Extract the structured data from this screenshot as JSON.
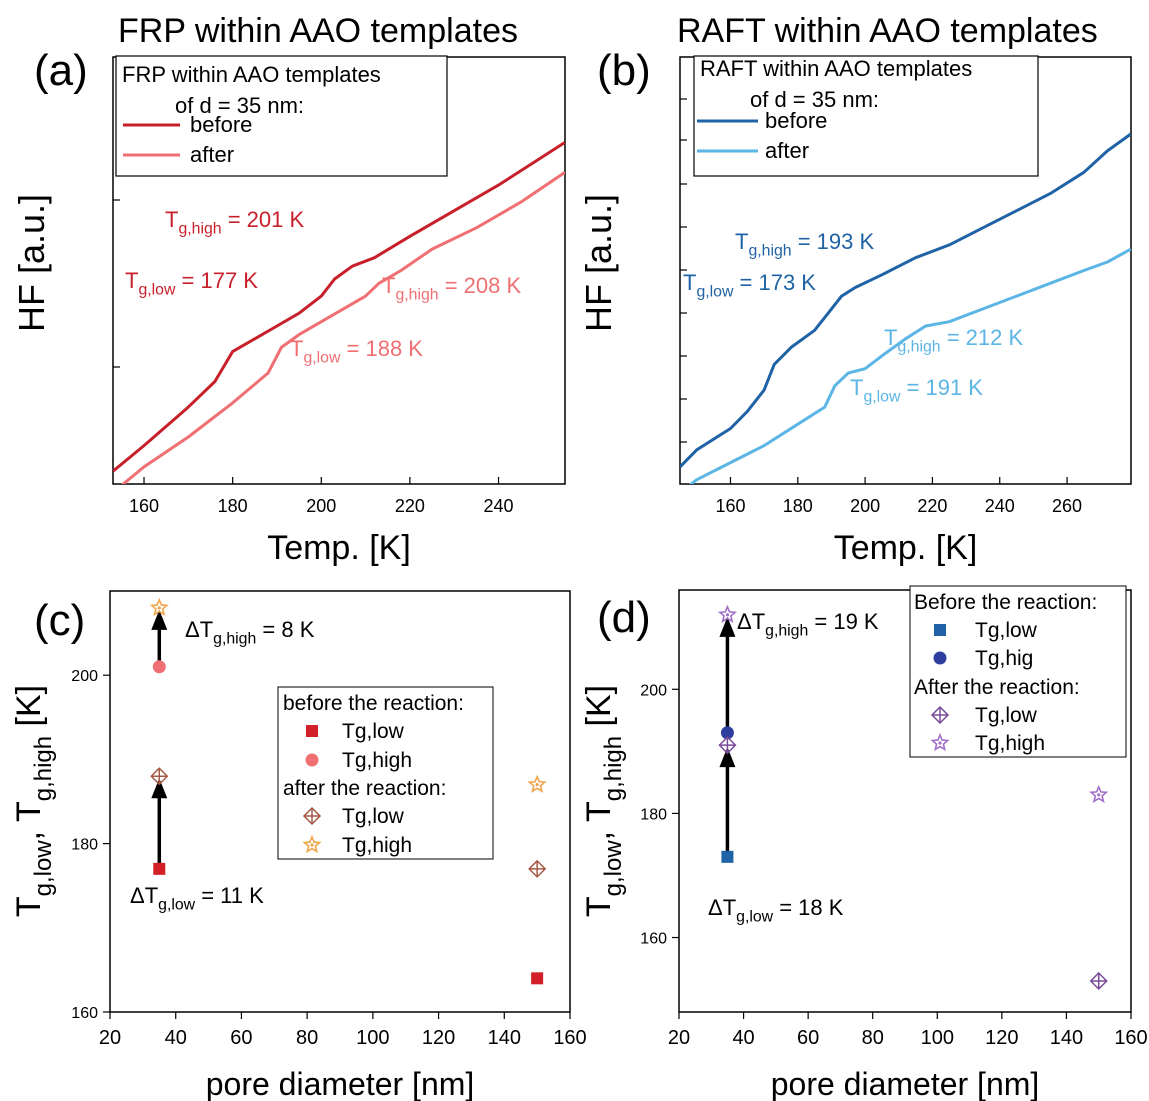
{
  "chart_data": [
    {
      "panel": "a",
      "type": "line",
      "panel_label": "(a)",
      "title": "FRP within AAO templates",
      "xlabel": "Temp. [K]",
      "ylabel": "HF [a.u.]",
      "xlim": [
        153,
        255
      ],
      "ylim": [
        0,
        1
      ],
      "xticks": [
        160,
        180,
        200,
        220,
        240
      ],
      "legend": {
        "position": "top-left",
        "title_lines": [
          "FRP within AAO templates",
          "of d = 35 nm:"
        ],
        "entries": [
          "before",
          "after"
        ]
      },
      "colors": {
        "before": "#c8202b",
        "after": "#ef6f73"
      },
      "series": [
        {
          "name": "before",
          "x": [
            153,
            160,
            170,
            176,
            180,
            185,
            190,
            195,
            200,
            203,
            207,
            212,
            220,
            230,
            240,
            255
          ],
          "y": [
            0.03,
            0.09,
            0.18,
            0.24,
            0.31,
            0.34,
            0.37,
            0.4,
            0.44,
            0.48,
            0.51,
            0.53,
            0.58,
            0.64,
            0.7,
            0.8
          ]
        },
        {
          "name": "after",
          "x": [
            153,
            160,
            170,
            180,
            188,
            191,
            195,
            200,
            205,
            210,
            213,
            218,
            225,
            235,
            245,
            255
          ],
          "y": [
            -0.02,
            0.04,
            0.11,
            0.19,
            0.26,
            0.32,
            0.35,
            0.38,
            0.41,
            0.44,
            0.47,
            0.5,
            0.55,
            0.6,
            0.66,
            0.73
          ]
        }
      ],
      "annotations": [
        {
          "sym": "T",
          "sub": "g,high",
          "text": " = 201 K",
          "color": "#c8202b"
        },
        {
          "sym": "T",
          "sub": "g,low",
          "text": " = 177 K",
          "color": "#c8202b"
        },
        {
          "sym": "T",
          "sub": "g,high",
          "text": " = 208 K",
          "color": "#ef6f73"
        },
        {
          "sym": "T",
          "sub": "g,low",
          "text": " = 188 K",
          "color": "#ef6f73"
        }
      ]
    },
    {
      "panel": "b",
      "type": "line",
      "panel_label": "(b)",
      "title": "RAFT within AAO templates",
      "xlabel": "Temp. [K]",
      "ylabel": "HF [a.u.]",
      "xlim": [
        145,
        279
      ],
      "ylim": [
        0,
        1
      ],
      "xticks": [
        160,
        180,
        200,
        220,
        240,
        260
      ],
      "legend": {
        "position": "top-left",
        "title_lines": [
          "RAFT within AAO templates",
          "of d = 35 nm:"
        ],
        "entries": [
          "before",
          "after"
        ]
      },
      "colors": {
        "before": "#1f63a6",
        "after": "#5bb5e5"
      },
      "series": [
        {
          "name": "before",
          "x": [
            145,
            150,
            160,
            165,
            170,
            173,
            178,
            185,
            190,
            193,
            197,
            205,
            215,
            225,
            235,
            245,
            255,
            265,
            272,
            279
          ],
          "y": [
            0.04,
            0.08,
            0.13,
            0.17,
            0.22,
            0.28,
            0.32,
            0.36,
            0.41,
            0.44,
            0.46,
            0.49,
            0.53,
            0.56,
            0.6,
            0.64,
            0.68,
            0.73,
            0.78,
            0.82
          ]
        },
        {
          "name": "after",
          "x": [
            145,
            150,
            160,
            170,
            180,
            188,
            191,
            195,
            200,
            205,
            212,
            218,
            225,
            235,
            245,
            255,
            265,
            272,
            279
          ],
          "y": [
            -0.02,
            0.01,
            0.05,
            0.09,
            0.14,
            0.18,
            0.23,
            0.26,
            0.27,
            0.3,
            0.34,
            0.37,
            0.38,
            0.41,
            0.44,
            0.47,
            0.5,
            0.52,
            0.55
          ]
        }
      ],
      "annotations": [
        {
          "sym": "T",
          "sub": "g,high",
          "text": " = 193 K",
          "color": "#1f63a6"
        },
        {
          "sym": "T",
          "sub": "g,low",
          "text": " = 173 K",
          "color": "#1f63a6"
        },
        {
          "sym": "T",
          "sub": "g,high",
          "text": " = 212 K",
          "color": "#5bb5e5"
        },
        {
          "sym": "T",
          "sub": "g,low",
          "text": " = 191 K",
          "color": "#5bb5e5"
        }
      ]
    },
    {
      "panel": "c",
      "type": "scatter",
      "panel_label": "(c)",
      "xlabel": "pore diameter [nm]",
      "ylabel": "T_g,low, T_g,high [K]",
      "xlim": [
        20,
        160
      ],
      "ylim": [
        160,
        210
      ],
      "xticks": [
        20,
        40,
        60,
        80,
        100,
        120,
        140,
        160
      ],
      "yticks": [
        160,
        180,
        200
      ],
      "legend": {
        "position": "center-right",
        "groups": [
          {
            "heading": "before the reaction:",
            "entries": [
              "Tg,low",
              "Tg,high"
            ]
          },
          {
            "heading": "after the reaction:",
            "entries": [
              "Tg,low",
              "Tg,high"
            ]
          }
        ]
      },
      "series": [
        {
          "name": "Tg,low",
          "group": "before",
          "marker": "square",
          "color": "#d32028",
          "x": [
            35,
            150
          ],
          "y": [
            177,
            164
          ]
        },
        {
          "name": "Tg,high",
          "group": "before",
          "marker": "circle",
          "color": "#ef6f73",
          "x": [
            35
          ],
          "y": [
            201
          ]
        },
        {
          "name": "Tg,low",
          "group": "after",
          "marker": "crossed-diamond",
          "color": "#a65a45",
          "x": [
            35,
            150
          ],
          "y": [
            188,
            177
          ]
        },
        {
          "name": "Tg,high",
          "group": "after",
          "marker": "star",
          "color": "#f0a64a",
          "x": [
            35,
            150
          ],
          "y": [
            208,
            187
          ]
        }
      ],
      "arrows": [
        {
          "x": 35,
          "from": 177,
          "to": 188
        },
        {
          "x": 35,
          "from": 201,
          "to": 208
        }
      ],
      "annotations": [
        {
          "sym": "ΔT",
          "sub": "g,high",
          "text": " = 8 K"
        },
        {
          "sym": "ΔT",
          "sub": "g,low",
          "text": " = 11 K"
        }
      ]
    },
    {
      "panel": "d",
      "type": "scatter",
      "panel_label": "(d)",
      "xlabel": "pore diameter [nm]",
      "ylabel": "T_g,low, T_g,high [K]",
      "xlim": [
        20,
        160
      ],
      "ylim": [
        148,
        216
      ],
      "xticks": [
        20,
        40,
        60,
        80,
        100,
        120,
        140,
        160
      ],
      "yticks": [
        160,
        180,
        200
      ],
      "legend": {
        "position": "top-right",
        "groups": [
          {
            "heading": "Before the reaction:",
            "entries": [
              "Tg,low",
              "Tg,hig"
            ]
          },
          {
            "heading": "After the reaction:",
            "entries": [
              "Tg,low",
              "Tg,high"
            ]
          }
        ]
      },
      "series": [
        {
          "name": "Tg,low",
          "group": "before",
          "marker": "square",
          "color": "#1f63a6",
          "x": [
            35
          ],
          "y": [
            173
          ]
        },
        {
          "name": "Tg,hig",
          "group": "before",
          "marker": "circle",
          "color": "#2e3e9e",
          "x": [
            35
          ],
          "y": [
            193
          ]
        },
        {
          "name": "Tg,low",
          "group": "after",
          "marker": "crossed-diamond",
          "color": "#7a4a9a",
          "x": [
            35,
            150
          ],
          "y": [
            191,
            153
          ]
        },
        {
          "name": "Tg,high",
          "group": "after",
          "marker": "star",
          "color": "#a070c8",
          "x": [
            35,
            150
          ],
          "y": [
            212,
            183
          ]
        }
      ],
      "arrows": [
        {
          "x": 35,
          "from": 173,
          "to": 191
        },
        {
          "x": 35,
          "from": 193,
          "to": 212
        }
      ],
      "annotations": [
        {
          "sym": "ΔT",
          "sub": "g,high",
          "text": " = 19 K"
        },
        {
          "sym": "ΔT",
          "sub": "g,low",
          "text": " = 18 K"
        }
      ]
    }
  ]
}
